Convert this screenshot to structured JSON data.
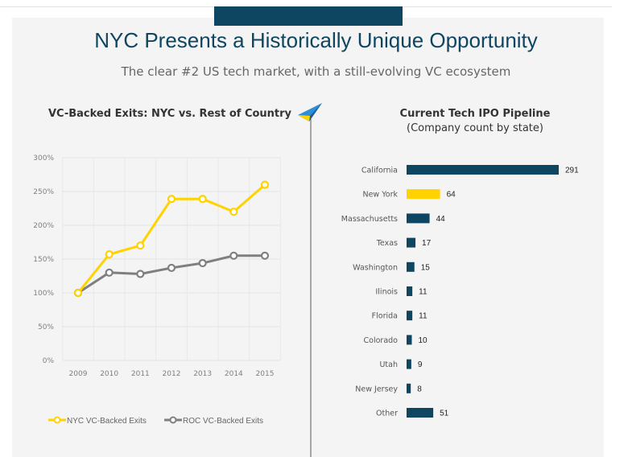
{
  "header": {
    "title": "NYC Presents a Historically Unique Opportunity",
    "subtitle": "The clear #2 US tech market, with a still-evolving VC ecosystem"
  },
  "colors": {
    "brand_navy": "#0e4561",
    "nyc_yellow": "#ffd200",
    "roc_gray": "#7f7f7f",
    "bar_navy": "#0e4561",
    "bar_highlight": "#ffd200",
    "plane_icon": "#2f8fd6"
  },
  "icons": {
    "decor": "paper-plane-icon"
  },
  "chart_data": [
    {
      "type": "line",
      "title": "VC-Backed Exits: NYC vs. Rest of Country",
      "x": [
        "2009",
        "2010",
        "2011",
        "2012",
        "2013",
        "2014",
        "2015"
      ],
      "yticks": [
        "0%",
        "50%",
        "100%",
        "150%",
        "200%",
        "250%",
        "300%"
      ],
      "ylim": [
        0,
        300
      ],
      "grid": true,
      "legend_position": "bottom",
      "series": [
        {
          "name": "NYC VC-Backed Exits",
          "values": [
            100,
            157,
            170,
            239,
            239,
            220,
            260
          ]
        },
        {
          "name": "ROC VC-Backed Exits",
          "values": [
            100,
            130,
            128,
            137,
            144,
            155,
            155
          ]
        }
      ]
    },
    {
      "type": "bar",
      "orientation": "horizontal",
      "title": "Current Tech IPO Pipeline",
      "subtitle": "(Company count by state)",
      "categories": [
        "California",
        "New York",
        "Massachusetts",
        "Texas",
        "Washington",
        "Ilinois",
        "Florida",
        "Colorado",
        "Utah",
        "New Jersey",
        "Other"
      ],
      "values": [
        291,
        64,
        44,
        17,
        15,
        11,
        11,
        10,
        9,
        8,
        51
      ],
      "highlight": "New York"
    }
  ]
}
